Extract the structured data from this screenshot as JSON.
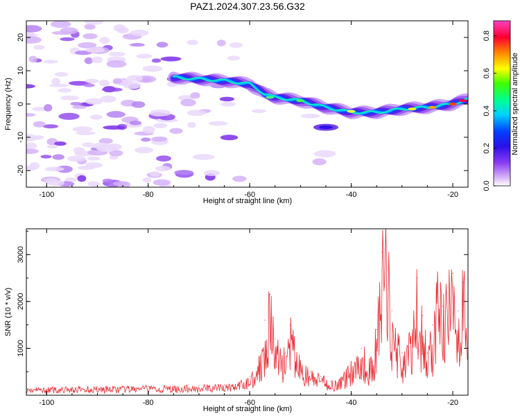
{
  "figure": {
    "title": "PAZ1.2024.307.23.56.G32"
  },
  "colors": {
    "snr_line": "#e8282e",
    "colormap": [
      "#ffffff",
      "#d8b4f8",
      "#a06cf0",
      "#7a2ee6",
      "#3a10e0",
      "#1850ff",
      "#00c8ff",
      "#00ffa0",
      "#40ff00",
      "#ffff00",
      "#ff8000",
      "#ff0040",
      "#ff40c0"
    ]
  },
  "chart_data": [
    {
      "type": "heatmap",
      "title": "",
      "xlabel": "Height of straight line (km)",
      "ylabel": "Frequency (Hz)",
      "xlim": [
        -104,
        -17
      ],
      "ylim": [
        -25,
        25
      ],
      "xticks": [
        -100,
        -80,
        -60,
        -40,
        -20
      ],
      "yticks": [
        -20,
        -10,
        0,
        10,
        20
      ],
      "ridge": {
        "description_points": [
          {
            "x": -75,
            "y": 8
          },
          {
            "x": -70,
            "y": 7.5
          },
          {
            "x": -65,
            "y": 7
          },
          {
            "x": -60,
            "y": 6
          },
          {
            "x": -57,
            "y": 3
          },
          {
            "x": -55,
            "y": 2
          },
          {
            "x": -50,
            "y": 1
          },
          {
            "x": -45,
            "y": -1
          },
          {
            "x": -40,
            "y": -2.5
          },
          {
            "x": -35,
            "y": -2.5
          },
          {
            "x": -30,
            "y": -1.5
          },
          {
            "x": -25,
            "y": -1
          },
          {
            "x": -20,
            "y": 0
          },
          {
            "x": -17,
            "y": 1.5
          }
        ],
        "peak_amplitude_region": [
          -20,
          -17
        ]
      },
      "colorbar": {
        "label": "Normalized spectral amplitude",
        "range": [
          0.0,
          0.88
        ],
        "ticks": [
          0.0,
          0.2,
          0.4,
          0.6,
          0.8
        ]
      }
    },
    {
      "type": "line",
      "title": "",
      "xlabel": "Height of straight line (km)",
      "ylabel": "SNR (10 * v/v)",
      "xlim": [
        -104,
        -17
      ],
      "ylim": [
        0,
        3550
      ],
      "xticks": [
        -100,
        -80,
        -60,
        -40,
        -20
      ],
      "yticks": [
        1000,
        2000,
        3000
      ],
      "series": [
        {
          "values": [
            {
              "x": -104,
              "y": 150
            },
            {
              "x": -95,
              "y": 160
            },
            {
              "x": -90,
              "y": 180
            },
            {
              "x": -85,
              "y": 170
            },
            {
              "x": -80,
              "y": 190
            },
            {
              "x": -75,
              "y": 180
            },
            {
              "x": -70,
              "y": 200
            },
            {
              "x": -65,
              "y": 220
            },
            {
              "x": -62,
              "y": 260
            },
            {
              "x": -60,
              "y": 400
            },
            {
              "x": -58,
              "y": 800
            },
            {
              "x": -57,
              "y": 1600
            },
            {
              "x": -56,
              "y": 2150
            },
            {
              "x": -55,
              "y": 1200
            },
            {
              "x": -53,
              "y": 900
            },
            {
              "x": -52,
              "y": 1500
            },
            {
              "x": -50,
              "y": 700
            },
            {
              "x": -48,
              "y": 500
            },
            {
              "x": -46,
              "y": 400
            },
            {
              "x": -44,
              "y": 300
            },
            {
              "x": -42,
              "y": 350
            },
            {
              "x": -40,
              "y": 700
            },
            {
              "x": -38,
              "y": 1000
            },
            {
              "x": -36,
              "y": 700
            },
            {
              "x": -35,
              "y": 1400
            },
            {
              "x": -34,
              "y": 3050
            },
            {
              "x": -33,
              "y": 3550
            },
            {
              "x": -32,
              "y": 1800
            },
            {
              "x": -30,
              "y": 900
            },
            {
              "x": -28,
              "y": 1300
            },
            {
              "x": -27,
              "y": 2500
            },
            {
              "x": -26,
              "y": 1700
            },
            {
              "x": -25,
              "y": 900
            },
            {
              "x": -24,
              "y": 1500
            },
            {
              "x": -23,
              "y": 2500
            },
            {
              "x": -22,
              "y": 1900
            },
            {
              "x": -20,
              "y": 2600
            },
            {
              "x": -19,
              "y": 1800
            },
            {
              "x": -18,
              "y": 2400
            },
            {
              "x": -17,
              "y": 2450
            }
          ]
        }
      ]
    }
  ]
}
